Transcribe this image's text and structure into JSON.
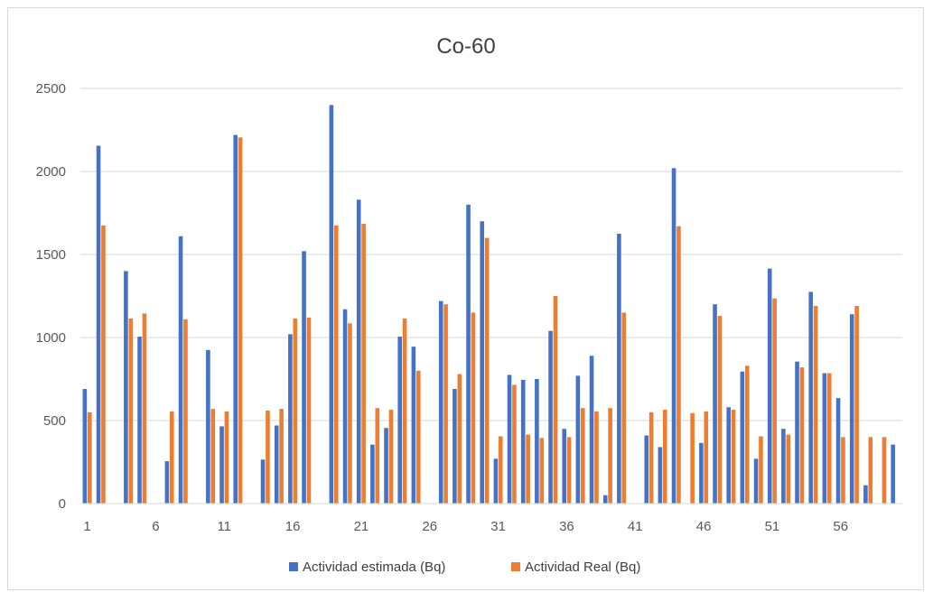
{
  "chart_data": {
    "type": "bar",
    "title": "Co-60",
    "xlabel": "",
    "ylabel": "",
    "ylim": [
      0,
      2500
    ],
    "yticks": [
      0,
      500,
      1000,
      1500,
      2000,
      2500
    ],
    "xtick_labels": [
      "1",
      "6",
      "11",
      "16",
      "21",
      "26",
      "31",
      "36",
      "41",
      "46",
      "51",
      "56"
    ],
    "grid": true,
    "legend_position": "bottom",
    "categories": [
      1,
      2,
      3,
      4,
      5,
      6,
      7,
      8,
      9,
      10,
      11,
      12,
      13,
      14,
      15,
      16,
      17,
      18,
      19,
      20,
      21,
      22,
      23,
      24,
      25,
      26,
      27,
      28,
      29,
      30,
      31,
      32,
      33,
      34,
      35,
      36,
      37,
      38,
      39,
      40,
      41,
      42,
      43,
      44,
      45,
      46,
      47,
      48,
      49,
      50,
      51,
      52,
      53,
      54,
      55,
      56,
      57,
      58,
      59,
      60
    ],
    "series": [
      {
        "name": "Actividad estimada (Bq)",
        "color": "#4472c4",
        "values": [
          690,
          2155,
          0,
          1400,
          1005,
          0,
          255,
          1610,
          0,
          925,
          465,
          2220,
          0,
          265,
          470,
          1020,
          1520,
          0,
          2400,
          1170,
          1830,
          355,
          455,
          1005,
          945,
          0,
          1220,
          690,
          1800,
          1700,
          270,
          775,
          745,
          750,
          1040,
          450,
          770,
          890,
          50,
          1625,
          0,
          410,
          340,
          2020,
          0,
          365,
          1200,
          580,
          795,
          270,
          1415,
          450,
          855,
          1275,
          785,
          635,
          1140,
          110,
          0,
          355
        ]
      },
      {
        "name": "Actividad Real (Bq)",
        "color": "#ed7d31",
        "values": [
          550,
          1675,
          0,
          1115,
          1145,
          0,
          555,
          1110,
          0,
          570,
          555,
          2205,
          0,
          560,
          570,
          1115,
          1120,
          0,
          1675,
          1085,
          1685,
          575,
          565,
          1115,
          800,
          0,
          1200,
          780,
          1150,
          1600,
          405,
          715,
          415,
          395,
          1250,
          400,
          575,
          555,
          575,
          1150,
          0,
          550,
          565,
          1670,
          545,
          555,
          1130,
          565,
          830,
          405,
          1235,
          415,
          820,
          1190,
          785,
          400,
          1190,
          400,
          400,
          0
        ]
      }
    ]
  }
}
